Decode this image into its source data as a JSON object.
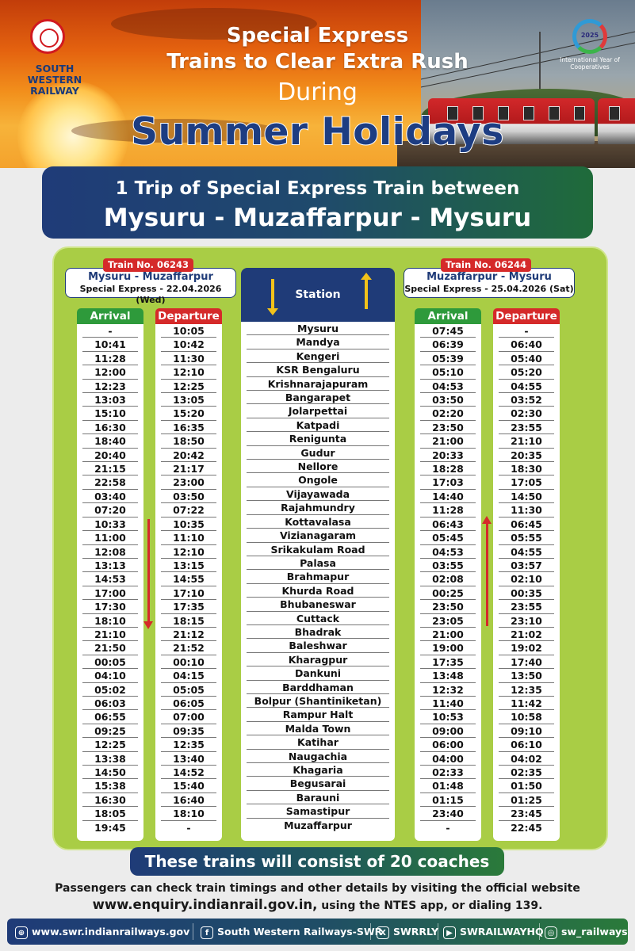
{
  "header": {
    "railway_name_line1": "SOUTH WESTERN",
    "railway_name_line2": "RAILWAY",
    "title_line1": "Special Express",
    "title_line2": "Trains to Clear Extra Rush",
    "title_line3": "During",
    "title_line4": "Summer Holidays",
    "iyc_year": "2025",
    "iyc_text": "International Year of Cooperatives"
  },
  "trip": {
    "line1": "1 Trip of Special Express Train between",
    "line2": "Mysuru - Muzaffarpur - Mysuru"
  },
  "train_left": {
    "number": "Train No. 06243",
    "route": "Mysuru - Muzaffarpur",
    "sub": "Special Express - 22.04.2026 (Wed)",
    "arrival_label": "Arrival",
    "departure_label": "Departure",
    "arrival": [
      "-",
      "10:41",
      "11:28",
      "12:00",
      "12:23",
      "13:03",
      "15:10",
      "16:30",
      "18:40",
      "20:40",
      "21:15",
      "22:58",
      "03:40",
      "07:20",
      "10:33",
      "11:00",
      "12:08",
      "13:13",
      "14:53",
      "17:00",
      "17:30",
      "18:10",
      "21:10",
      "21:50",
      "00:05",
      "04:10",
      "05:02",
      "06:03",
      "06:55",
      "09:25",
      "12:25",
      "13:38",
      "14:50",
      "15:38",
      "16:30",
      "18:05",
      "19:45"
    ],
    "departure": [
      "10:05",
      "10:42",
      "11:30",
      "12:10",
      "12:25",
      "13:05",
      "15:20",
      "16:35",
      "18:50",
      "20:42",
      "21:17",
      "23:00",
      "03:50",
      "07:22",
      "10:35",
      "11:10",
      "12:10",
      "13:15",
      "14:55",
      "17:10",
      "17:35",
      "18:15",
      "21:12",
      "21:52",
      "00:10",
      "04:15",
      "05:05",
      "06:05",
      "07:00",
      "09:35",
      "12:35",
      "13:40",
      "14:52",
      "15:40",
      "16:40",
      "18:10",
      "-"
    ]
  },
  "station_header": "Station",
  "stations": [
    "Mysuru",
    "Mandya",
    "Kengeri",
    "KSR Bengaluru",
    "Krishnarajapuram",
    "Bangarapet",
    "Jolarpettai",
    "Katpadi",
    "Renigunta",
    "Gudur",
    "Nellore",
    "Ongole",
    "Vijayawada",
    "Rajahmundry",
    "Kottavalasa",
    "Vizianagaram",
    "Srikakulam Road",
    "Palasa",
    "Brahmapur",
    "Khurda Road",
    "Bhubaneswar",
    "Cuttack",
    "Bhadrak",
    "Baleshwar",
    "Kharagpur",
    "Dankuni",
    "Barddhaman",
    "Bolpur (Shantiniketan)",
    "Rampur Halt",
    "Malda Town",
    "Katihar",
    "Naugachia",
    "Khagaria",
    "Begusarai",
    "Barauni",
    "Samastipur",
    "Muzaffarpur"
  ],
  "train_right": {
    "number": "Train No. 06244",
    "route": "Muzaffarpur - Mysuru",
    "sub": "Special Express - 25.04.2026 (Sat)",
    "arrival_label": "Arrival",
    "departure_label": "Departure",
    "arrival": [
      "07:45",
      "06:39",
      "05:39",
      "05:10",
      "04:53",
      "03:50",
      "02:20",
      "23:50",
      "21:00",
      "20:33",
      "18:28",
      "17:03",
      "14:40",
      "11:28",
      "06:43",
      "05:45",
      "04:53",
      "03:55",
      "02:08",
      "00:25",
      "23:50",
      "23:05",
      "21:00",
      "19:00",
      "17:35",
      "13:48",
      "12:32",
      "11:40",
      "10:53",
      "09:00",
      "06:00",
      "04:00",
      "02:33",
      "01:48",
      "01:15",
      "23:40",
      "-"
    ],
    "departure": [
      "-",
      "06:40",
      "05:40",
      "05:20",
      "04:55",
      "03:52",
      "02:30",
      "23:55",
      "21:10",
      "20:35",
      "18:30",
      "17:05",
      "14:50",
      "11:30",
      "06:45",
      "05:55",
      "04:55",
      "03:57",
      "02:10",
      "00:35",
      "23:55",
      "23:10",
      "21:02",
      "19:02",
      "17:40",
      "13:50",
      "12:35",
      "11:42",
      "10:58",
      "09:10",
      "06:10",
      "04:02",
      "02:35",
      "01:50",
      "01:25",
      "23:45",
      "22:45"
    ]
  },
  "footer": {
    "coaches": "These trains will consist of 20 coaches",
    "info_line1": "Passengers can check train timings and other details by visiting the official website",
    "info_url": "www.enquiry.indianrail.gov.in,",
    "info_rest": " using the NTES app, or dialing 139.",
    "social": {
      "web": "www.swr.indianrailways.gov",
      "facebook": "South Western Railways-SWR",
      "x": "SWRRLY",
      "youtube": "SWRAILWAYHQ",
      "instagram": "sw_railways"
    }
  }
}
